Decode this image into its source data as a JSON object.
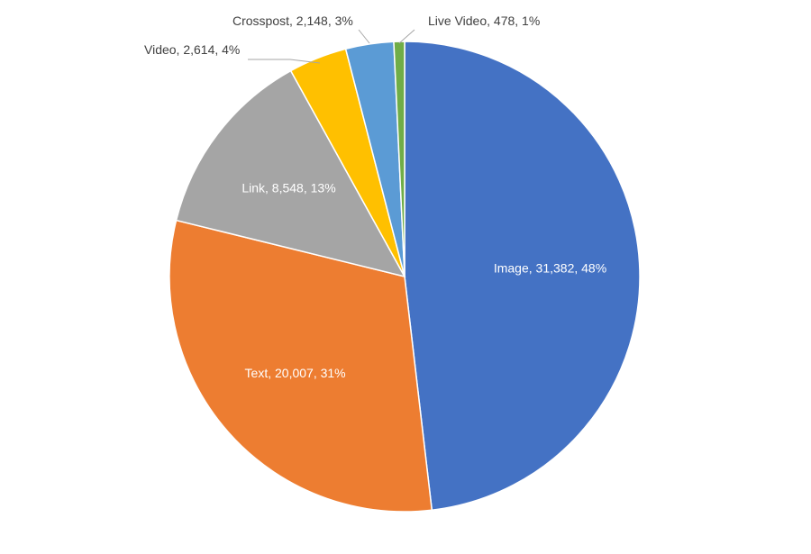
{
  "chart_data": {
    "type": "pie",
    "title": "",
    "start_angle": "12 o'clock",
    "direction": "clockwise",
    "slices": [
      {
        "name": "Image",
        "value": 31382,
        "percent": 48,
        "label": "Image, 31,382, 48%",
        "color": "#4472C4",
        "label_position": "inside"
      },
      {
        "name": "Text",
        "value": 20007,
        "percent": 31,
        "label": "Text, 20,007, 31%",
        "color": "#ED7D31",
        "label_position": "inside"
      },
      {
        "name": "Link",
        "value": 8548,
        "percent": 13,
        "label": "Link, 8,548, 13%",
        "color": "#A5A5A5",
        "label_position": "inside"
      },
      {
        "name": "Video",
        "value": 2614,
        "percent": 4,
        "label": "Video, 2,614, 4%",
        "color": "#FFC000",
        "label_position": "outside"
      },
      {
        "name": "Crosspost",
        "value": 2148,
        "percent": 3,
        "label": "Crosspost, 2,148, 3%",
        "color": "#5B9BD5",
        "label_position": "outside"
      },
      {
        "name": "Live Video",
        "value": 478,
        "percent": 1,
        "label": "Live Video, 478, 1%",
        "color": "#70AD47",
        "label_position": "outside"
      }
    ]
  }
}
